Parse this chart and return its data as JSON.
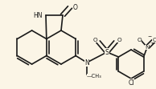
{
  "bg_color": "#fbf5e6",
  "line_color": "#1a1a1a",
  "text_color": "#1a1a1a",
  "lw": 1.2,
  "fig_width": 1.94,
  "fig_height": 1.11,
  "dpi": 100
}
